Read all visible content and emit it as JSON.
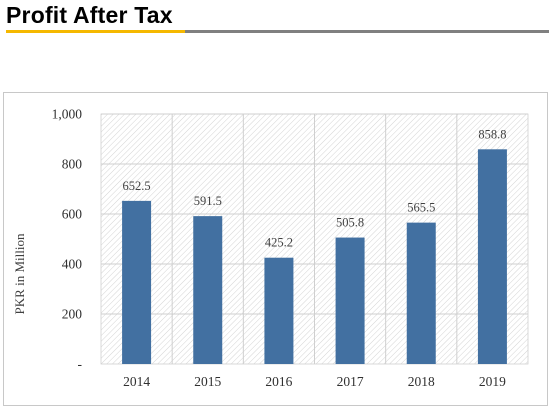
{
  "page": {
    "title": "Profit After Tax"
  },
  "colors": {
    "accent_rule": "#f5b800",
    "rule": "#808080",
    "bar": "#4270a1"
  },
  "chart_data": {
    "type": "bar",
    "categories": [
      "2014",
      "2015",
      "2016",
      "2017",
      "2018",
      "2019"
    ],
    "values": [
      652.5,
      591.5,
      425.2,
      505.8,
      565.5,
      858.8
    ],
    "data_labels": [
      "652.5",
      "591.5",
      "425.2",
      "505.8",
      "565.5",
      "858.8"
    ],
    "ylabel": "PKR in Million",
    "xlabel": "",
    "ylim": [
      0,
      1000
    ],
    "yticks": [
      0,
      200,
      400,
      600,
      800,
      1000
    ],
    "ytick_labels": [
      "-",
      "200",
      "400",
      "600",
      "800",
      "1,000"
    ],
    "grid": true,
    "legend": "none"
  }
}
